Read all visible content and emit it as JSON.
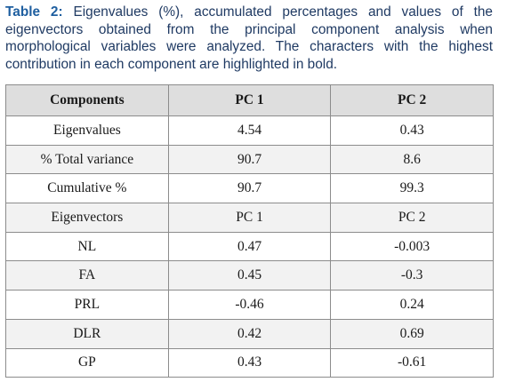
{
  "caption": {
    "label": "Table 2:",
    "text": " Eigenvalues (%), accumulated percentages and values of the eigenvectors obtained from the principal component analysis when morphological variables were analyzed. The characters with the highest contribution in each component are highlighted in bold."
  },
  "table": {
    "headers": [
      "Components",
      "PC 1",
      "PC 2"
    ],
    "rows": [
      [
        "Eigenvalues",
        "4.54",
        "0.43"
      ],
      [
        "% Total variance",
        "90.7",
        "8.6"
      ],
      [
        "Cumulative %",
        "90.7",
        "99.3"
      ],
      [
        "Eigenvectors",
        "PC 1",
        "PC 2"
      ],
      [
        "NL",
        "0.47",
        "-0.003"
      ],
      [
        "FA",
        "0.45",
        "-0.3"
      ],
      [
        "PRL",
        "-0.46",
        "0.24"
      ],
      [
        "DLR",
        "0.42",
        "0.69"
      ],
      [
        "GP",
        "0.43",
        "-0.61"
      ]
    ]
  }
}
